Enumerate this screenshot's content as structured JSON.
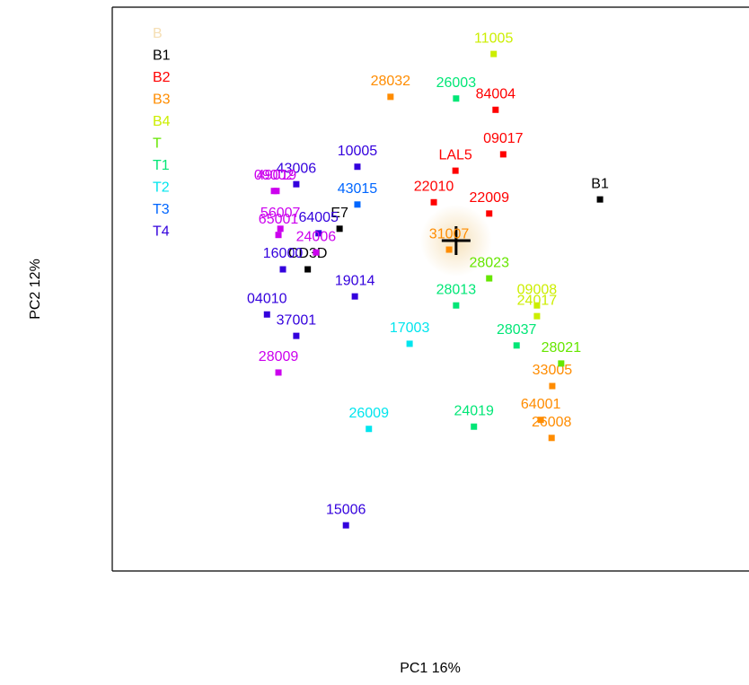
{
  "chart_data": {
    "type": "scatter",
    "xlabel": "PC1 16%",
    "ylabel": "PC2 12%",
    "xlim": [
      0,
      100
    ],
    "ylim": [
      0,
      100
    ],
    "legend": "top-left",
    "series": [
      {
        "name": "B",
        "color": "#f5deb3",
        "x": [
          54.0
        ],
        "y": [
          58.6
        ]
      },
      {
        "name": "B1",
        "color": "#000000",
        "x": [
          76.6,
          30.7,
          35.7
        ],
        "y": [
          65.9,
          53.5,
          60.7
        ],
        "labels": [
          "B1",
          "CD3D",
          "E7"
        ]
      },
      {
        "name": "B2",
        "color": "#ff0000",
        "x": [
          60.2,
          53.9,
          61.4,
          50.5,
          59.2
        ],
        "y": [
          81.8,
          71.0,
          73.9,
          65.4,
          63.4
        ],
        "labels": [
          "84004",
          "LAL5",
          "09017",
          "22010",
          "22009"
        ]
      },
      {
        "name": "B3",
        "color": "#ff8c00",
        "x": [
          43.7,
          52.9,
          69.1,
          67.3,
          69.0
        ],
        "y": [
          84.1,
          57.0,
          32.8,
          26.8,
          23.6
        ],
        "labels": [
          "28032",
          "31007",
          "33005",
          "64001",
          "26008"
        ]
      },
      {
        "name": "B4",
        "color": "#ccee00",
        "x": [
          59.9,
          66.7,
          66.7
        ],
        "y": [
          91.7,
          47.1,
          45.2
        ],
        "labels": [
          "11005",
          "09008",
          "24017"
        ]
      },
      {
        "name": "T",
        "color": "#66e600",
        "x": [
          59.2,
          70.5
        ],
        "y": [
          51.9,
          36.8
        ],
        "labels": [
          "28023",
          "28021"
        ]
      },
      {
        "name": "T1",
        "color": "#00e676",
        "x": [
          54.0,
          54.0,
          63.5,
          56.8
        ],
        "y": [
          83.8,
          47.1,
          40.0,
          25.6
        ],
        "labels": [
          "26003",
          "28013",
          "28037",
          "24019"
        ]
      },
      {
        "name": "T2",
        "color": "#00e5ee",
        "x": [
          46.7,
          40.3
        ],
        "y": [
          40.3,
          25.2
        ],
        "labels": [
          "17003",
          "26009"
        ]
      },
      {
        "name": "T3",
        "color": "#0066ff",
        "x": [
          38.5
        ],
        "y": [
          65.0
        ],
        "labels": [
          "43015"
        ]
      },
      {
        "name": "T4",
        "color": "#3300dd",
        "x": [
          38.5,
          28.9,
          32.4,
          38.1,
          26.8,
          28.9,
          24.3,
          36.7
        ],
        "y": [
          71.7,
          68.6,
          59.9,
          48.7,
          53.5,
          41.7,
          45.5,
          8.1
        ],
        "labels": [
          "10005",
          "43006",
          "64005",
          "19014",
          "16000",
          "37001",
          "04010",
          "15006"
        ]
      },
      {
        "color": "#cc00ee",
        "x": [
          25.4,
          25.8,
          26.4,
          26.1,
          32.0,
          26.1
        ],
        "y": [
          67.4,
          67.4,
          60.7,
          59.6,
          56.5,
          35.2
        ],
        "labels": [
          "09002",
          "49019",
          "56007",
          "65001",
          "24006",
          "28009"
        ]
      }
    ]
  }
}
